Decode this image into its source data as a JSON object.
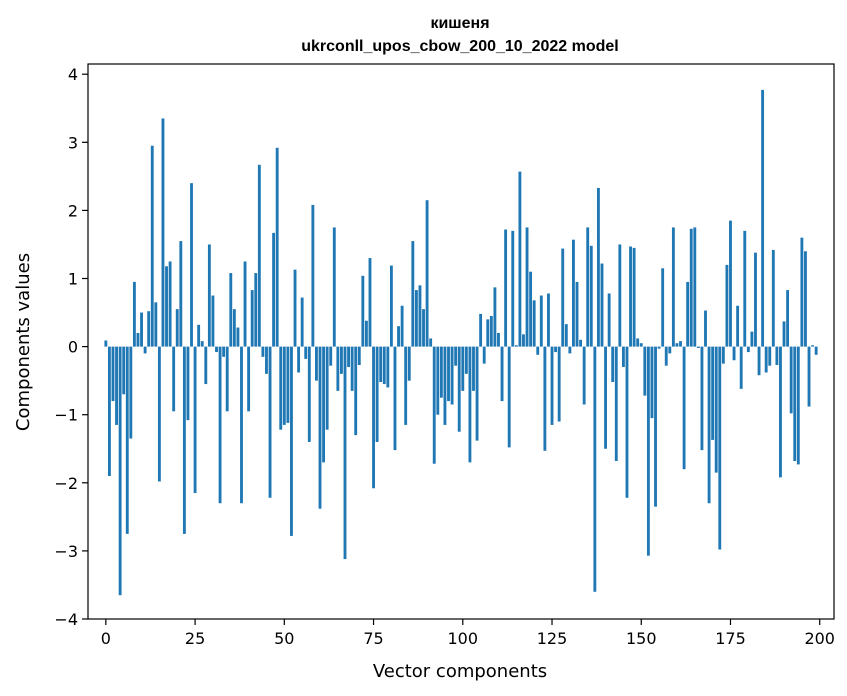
{
  "chart_data": {
    "type": "bar",
    "title": "кишеня",
    "subtitle": "ukrconll_upos_cbow_200_10_2022 model",
    "xlabel": "Vector components",
    "ylabel": "Components values",
    "xlim": [
      -5,
      204
    ],
    "ylim": [
      -4,
      4.15
    ],
    "xticks": [
      0,
      25,
      50,
      75,
      100,
      125,
      150,
      175,
      200
    ],
    "xtick_labels": [
      "0",
      "25",
      "50",
      "75",
      "100",
      "125",
      "150",
      "175",
      "200"
    ],
    "yticks": [
      -4,
      -3,
      -2,
      -1,
      0,
      1,
      2,
      3,
      4
    ],
    "ytick_labels": [
      "−4",
      "−3",
      "−2",
      "−1",
      "0",
      "1",
      "2",
      "3",
      "4"
    ],
    "grid": false,
    "bar_color": "#1f77b4",
    "x": [
      0,
      1,
      2,
      3,
      4,
      5,
      6,
      7,
      8,
      9,
      10,
      11,
      12,
      13,
      14,
      15,
      16,
      17,
      18,
      19,
      20,
      21,
      22,
      23,
      24,
      25,
      26,
      27,
      28,
      29,
      30,
      31,
      32,
      33,
      34,
      35,
      36,
      37,
      38,
      39,
      40,
      41,
      42,
      43,
      44,
      45,
      46,
      47,
      48,
      49,
      50,
      51,
      52,
      53,
      54,
      55,
      56,
      57,
      58,
      59,
      60,
      61,
      62,
      63,
      64,
      65,
      66,
      67,
      68,
      69,
      70,
      71,
      72,
      73,
      74,
      75,
      76,
      77,
      78,
      79,
      80,
      81,
      82,
      83,
      84,
      85,
      86,
      87,
      88,
      89,
      90,
      91,
      92,
      93,
      94,
      95,
      96,
      97,
      98,
      99,
      100,
      101,
      102,
      103,
      104,
      105,
      106,
      107,
      108,
      109,
      110,
      111,
      112,
      113,
      114,
      115,
      116,
      117,
      118,
      119,
      120,
      121,
      122,
      123,
      124,
      125,
      126,
      127,
      128,
      129,
      130,
      131,
      132,
      133,
      134,
      135,
      136,
      137,
      138,
      139,
      140,
      141,
      142,
      143,
      144,
      145,
      146,
      147,
      148,
      149,
      150,
      151,
      152,
      153,
      154,
      155,
      156,
      157,
      158,
      159,
      160,
      161,
      162,
      163,
      164,
      165,
      166,
      167,
      168,
      169,
      170,
      171,
      172,
      173,
      174,
      175,
      176,
      177,
      178,
      179,
      180,
      181,
      182,
      183,
      184,
      185,
      186,
      187,
      188,
      189,
      190,
      191,
      192,
      193,
      194,
      195,
      196,
      197,
      198,
      199
    ],
    "values": [
      0.09,
      -1.9,
      -0.8,
      -1.15,
      -3.65,
      -0.7,
      -2.75,
      -1.35,
      0.95,
      0.2,
      0.5,
      -0.1,
      0.52,
      2.95,
      0.65,
      -1.98,
      3.35,
      1.18,
      1.25,
      -0.95,
      0.55,
      1.55,
      -2.75,
      -1.08,
      2.4,
      -2.15,
      0.32,
      0.08,
      -0.55,
      1.5,
      0.75,
      -0.08,
      -2.3,
      -0.15,
      -0.95,
      1.08,
      0.55,
      0.28,
      -2.3,
      1.25,
      -0.95,
      0.83,
      1.08,
      2.67,
      -0.15,
      -0.4,
      -2.22,
      1.67,
      2.92,
      -1.22,
      -1.15,
      -1.12,
      -2.78,
      1.13,
      -0.38,
      0.72,
      -0.18,
      -1.4,
      2.08,
      -0.5,
      -2.38,
      -1.7,
      -1.22,
      -0.28,
      1.75,
      -0.65,
      -0.4,
      -3.12,
      -0.3,
      -0.65,
      -1.3,
      -0.27,
      1.04,
      0.38,
      1.3,
      -2.08,
      -1.4,
      -0.52,
      -0.55,
      -0.6,
      1.19,
      -1.52,
      0.3,
      0.6,
      -1.15,
      -0.5,
      1.55,
      0.83,
      0.9,
      0.55,
      2.15,
      0.12,
      -1.72,
      -1.0,
      -0.75,
      -1.15,
      -0.8,
      -0.85,
      -0.28,
      -1.25,
      -0.65,
      -0.4,
      -1.7,
      -0.65,
      -1.38,
      0.48,
      -0.25,
      0.4,
      0.45,
      0.87,
      0.2,
      -0.8,
      1.72,
      -1.48,
      1.7,
      0.02,
      2.57,
      0.18,
      1.75,
      1.1,
      0.68,
      -0.12,
      0.75,
      -1.53,
      0.78,
      -1.15,
      -0.08,
      -1.1,
      1.44,
      0.33,
      -0.1,
      1.57,
      0.95,
      0.1,
      -0.85,
      1.75,
      1.48,
      -3.6,
      2.33,
      1.22,
      -1.5,
      0.78,
      -0.52,
      -1.68,
      1.5,
      -0.3,
      -2.22,
      1.47,
      1.45,
      0.12,
      0.05,
      -0.72,
      -3.07,
      -1.05,
      -2.35,
      -0.03,
      1.15,
      -0.28,
      -0.1,
      1.75,
      0.05,
      0.08,
      -1.8,
      0.95,
      1.73,
      1.75,
      -0.02,
      -1.52,
      0.53,
      -2.3,
      -1.37,
      -1.85,
      -2.98,
      -0.25,
      1.2,
      1.85,
      -0.2,
      0.6,
      -0.62,
      1.7,
      -0.08,
      0.22,
      1.38,
      -0.42,
      3.77,
      -0.38,
      -0.28,
      1.42,
      -0.27,
      -1.92,
      0.37,
      0.83,
      -0.98,
      -1.68,
      -1.73,
      1.6,
      1.4,
      -0.88,
      0.02,
      -0.12
    ]
  }
}
